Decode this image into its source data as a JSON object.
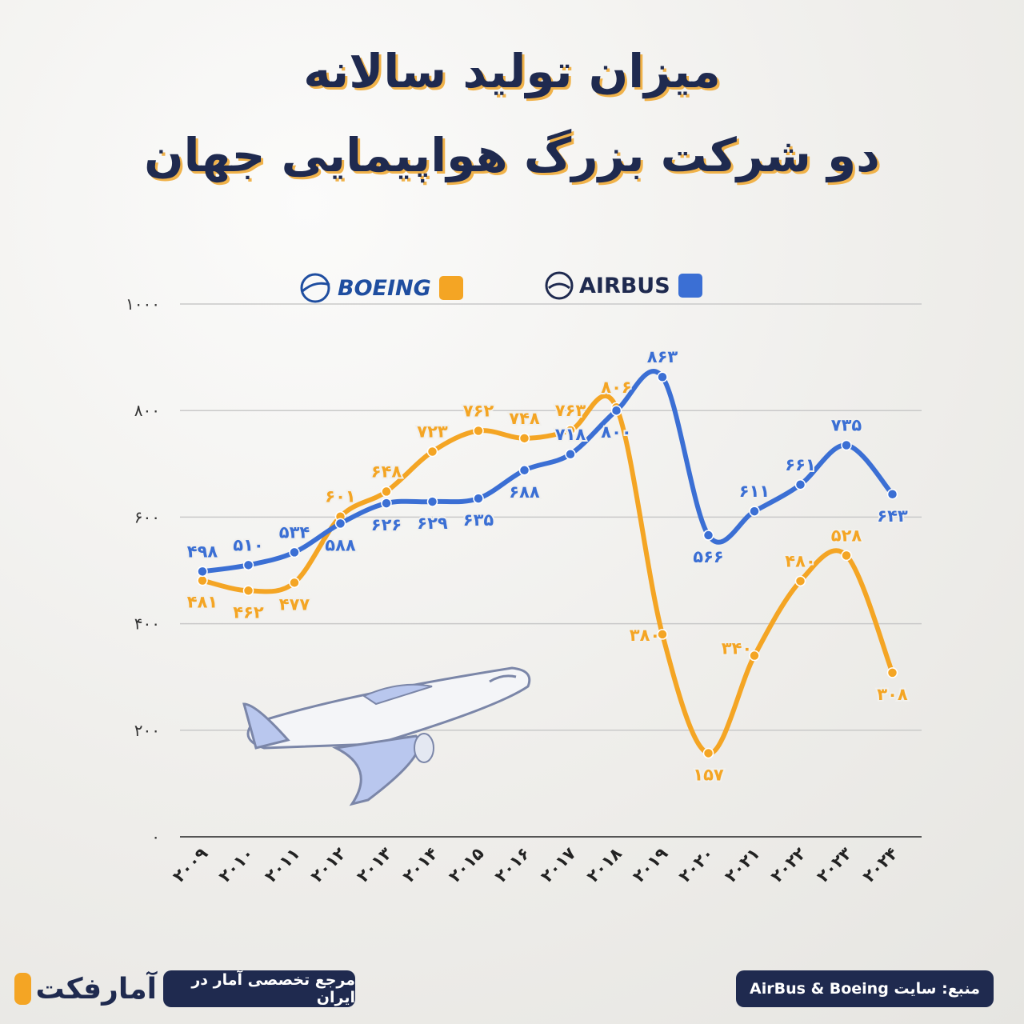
{
  "title_line1": "میزان تولید سالانه",
  "title_line2": "دو شرکت بزرگ هواپیمایی جهان",
  "legend": {
    "airbus": {
      "label": "AIRBUS",
      "color": "#3b6fd4"
    },
    "boeing": {
      "label": "BOEING",
      "color": "#f4a524"
    }
  },
  "footer": {
    "source": "منبع: سایت AirBus & Boeing",
    "tagline": "مرجع تخصصی آمار در ایران",
    "brand": "آمارفکت"
  },
  "chart_data": {
    "type": "line",
    "categories": [
      "۲۰۰۹",
      "۲۰۱۰",
      "۲۰۱۱",
      "۲۰۱۲",
      "۲۰۱۳",
      "۲۰۱۴",
      "۲۰۱۵",
      "۲۰۱۶",
      "۲۰۱۷",
      "۲۰۱۸",
      "۲۰۱۹",
      "۲۰۲۰",
      "۲۰۲۱",
      "۲۰۲۲",
      "۲۰۲۳",
      "۲۰۲۴"
    ],
    "y_ticks": [
      "۰",
      "۲۰۰",
      "۴۰۰",
      "۶۰۰",
      "۸۰۰",
      "۱۰۰۰"
    ],
    "ylim": [
      0,
      1000
    ],
    "grid": true,
    "legend_position": "top-right",
    "series": [
      {
        "name": "AIRBUS",
        "color": "#3b6fd4",
        "values": [
          498,
          510,
          534,
          588,
          626,
          629,
          635,
          688,
          718,
          800,
          863,
          566,
          611,
          661,
          735,
          643
        ],
        "labels": [
          "۴۹۸",
          "۵۱۰",
          "۵۳۴",
          "۵۸۸",
          "۶۲۶",
          "۶۲۹",
          "۶۳۵",
          "۶۸۸",
          "۷۱۸",
          "۸۰۰",
          "۸۶۳",
          "۵۶۶",
          "۶۱۱",
          "۶۶۱",
          "۷۳۵",
          "۶۴۳"
        ]
      },
      {
        "name": "BOEING",
        "color": "#f4a524",
        "values": [
          481,
          462,
          477,
          601,
          648,
          723,
          762,
          748,
          763,
          806,
          380,
          157,
          340,
          480,
          528,
          308
        ],
        "labels": [
          "۴۸۱",
          "۴۶۲",
          "۴۷۷",
          "۶۰۱",
          "۶۴۸",
          "۷۲۳",
          "۷۶۲",
          "۷۴۸",
          "۷۶۳",
          "۸۰۶",
          "۳۸۰",
          "۱۵۷",
          "۳۴۰",
          "۴۸۰",
          "۵۲۸",
          "۳۰۸"
        ]
      }
    ]
  }
}
